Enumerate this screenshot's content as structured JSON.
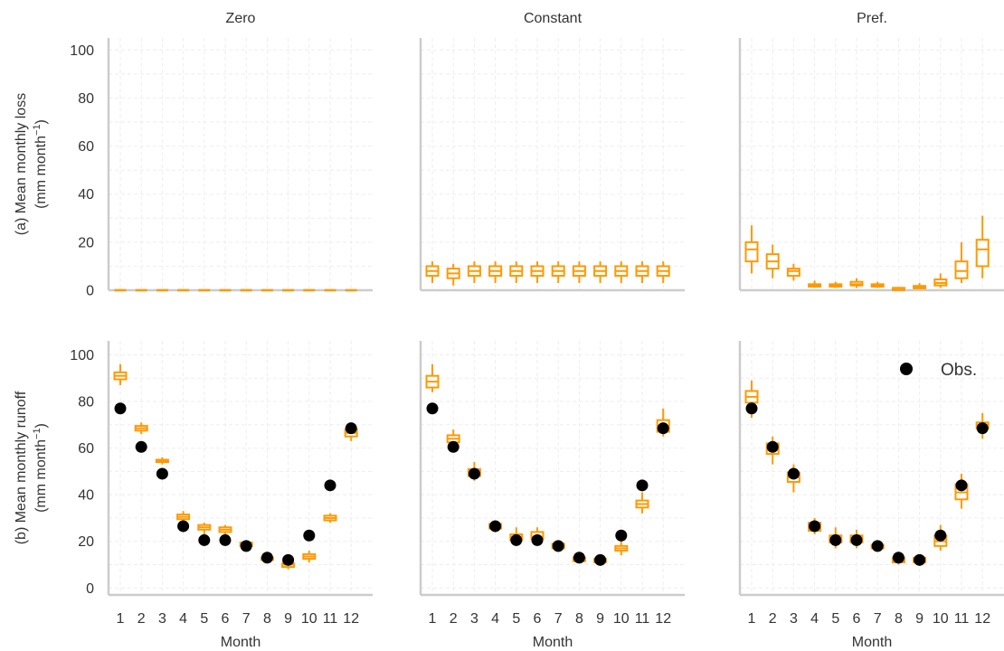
{
  "colors": {
    "box": "#ff9900",
    "obs": "#000000",
    "axis": "#cccccc",
    "grid": "#eeeeee",
    "text": "#333333"
  },
  "chart_data": {
    "type": "box",
    "grid": true,
    "legend": {
      "label": "Obs.",
      "placement": "top-right of Pref. runoff panel"
    },
    "columns": [
      "Zero",
      "Constant",
      "Pref."
    ],
    "xlabel": "Month",
    "categories": [
      "1",
      "2",
      "3",
      "4",
      "5",
      "6",
      "7",
      "8",
      "9",
      "10",
      "11",
      "12"
    ],
    "rows": [
      {
        "ylabel_line1": "(a) Mean monthly loss",
        "ylabel_line2": "(mm month",
        "ylabel_sup": "−1",
        "ylabel_tail": ")",
        "ylim": [
          0,
          105
        ],
        "yticks": [
          0,
          20,
          40,
          60,
          80,
          100
        ],
        "panels": [
          {
            "column": "Zero",
            "boxes": [
              [
                0,
                0,
                0,
                0,
                0
              ],
              [
                0,
                0,
                0,
                0,
                0
              ],
              [
                0,
                0,
                0,
                0,
                0
              ],
              [
                0,
                0,
                0,
                0,
                0
              ],
              [
                0,
                0,
                0,
                0,
                0
              ],
              [
                0,
                0,
                0,
                0,
                0
              ],
              [
                0,
                0,
                0,
                0,
                0
              ],
              [
                0,
                0,
                0,
                0,
                0
              ],
              [
                0,
                0,
                0,
                0,
                0
              ],
              [
                0,
                0,
                0,
                0,
                0
              ],
              [
                0,
                0,
                0,
                0,
                0
              ],
              [
                0,
                0,
                0,
                0,
                0
              ]
            ]
          },
          {
            "column": "Constant",
            "boxes": [
              [
                3,
                6,
                8,
                10,
                12
              ],
              [
                2,
                5,
                7,
                9,
                11
              ],
              [
                3,
                6,
                8,
                10,
                12
              ],
              [
                3,
                6,
                8,
                10,
                12
              ],
              [
                3,
                6,
                8,
                10,
                12
              ],
              [
                3,
                6,
                8,
                10,
                12
              ],
              [
                3,
                6,
                8,
                10,
                12
              ],
              [
                3,
                6,
                8,
                10,
                12
              ],
              [
                3,
                6,
                8,
                10,
                12
              ],
              [
                3,
                6,
                8,
                10,
                12
              ],
              [
                3,
                6,
                8,
                10,
                12
              ],
              [
                3,
                6,
                8,
                10,
                12
              ]
            ]
          },
          {
            "column": "Pref.",
            "boxes": [
              [
                7,
                12,
                17,
                20,
                27
              ],
              [
                5,
                9,
                12,
                15,
                19
              ],
              [
                4,
                6,
                8,
                9,
                11
              ],
              [
                1,
                1.5,
                2,
                2.5,
                4
              ],
              [
                1,
                1.5,
                2,
                2.5,
                3.5
              ],
              [
                1,
                2,
                2.5,
                3.5,
                5
              ],
              [
                1,
                1.5,
                2,
                2.5,
                3.5
              ],
              [
                0.5,
                0.5,
                0.8,
                1,
                1.2
              ],
              [
                0.5,
                0.8,
                1.2,
                1.8,
                3
              ],
              [
                1,
                2,
                3,
                4.5,
                7
              ],
              [
                3,
                5,
                8,
                12,
                20
              ],
              [
                5,
                10,
                17,
                21,
                31
              ]
            ]
          }
        ]
      },
      {
        "ylabel_line1": "(b) Mean monthly runoff",
        "ylabel_line2": "(mm month",
        "ylabel_sup": "−1",
        "ylabel_tail": ")",
        "ylim": [
          -3,
          106
        ],
        "yticks": [
          0,
          20,
          40,
          60,
          80,
          100
        ],
        "obs": [
          77,
          60.5,
          49,
          26.5,
          20.5,
          20.5,
          18,
          13,
          12,
          22.5,
          44,
          68.5
        ],
        "panels": [
          {
            "column": "Zero",
            "boxes": [
              [
                87,
                89.5,
                91,
                92.5,
                96
              ],
              [
                66,
                67.5,
                68.5,
                69.5,
                71
              ],
              [
                53,
                54,
                54.5,
                55,
                56
              ],
              [
                28,
                29.5,
                30.5,
                31.5,
                33
              ],
              [
                23,
                25,
                26,
                27,
                28
              ],
              [
                23,
                24,
                25,
                26,
                27
              ],
              [
                17,
                18,
                19,
                19.5,
                20.5
              ],
              [
                11,
                12,
                12.5,
                13,
                14
              ],
              [
                8,
                9,
                10,
                10.5,
                12
              ],
              [
                11,
                12.5,
                13.5,
                14.5,
                16
              ],
              [
                28,
                29,
                30,
                31,
                32
              ],
              [
                63,
                65,
                66.5,
                68,
                71
              ]
            ]
          },
          {
            "column": "Constant",
            "boxes": [
              [
                84,
                86,
                88.5,
                91,
                96
              ],
              [
                61,
                62.5,
                64,
                65.5,
                68
              ],
              [
                46,
                48,
                50,
                51,
                54
              ],
              [
                24,
                25.5,
                26.5,
                27.5,
                29
              ],
              [
                19,
                20.5,
                22,
                23,
                26
              ],
              [
                19,
                21,
                22,
                24,
                26
              ],
              [
                16,
                17,
                18,
                19,
                20
              ],
              [
                11,
                11.5,
                12,
                13,
                14
              ],
              [
                10,
                11,
                11.5,
                12.5,
                14
              ],
              [
                14,
                16,
                17,
                18,
                21
              ],
              [
                32,
                34.5,
                36,
                37.5,
                41
              ],
              [
                65,
                67,
                69.5,
                72,
                77
              ]
            ]
          },
          {
            "column": "Pref.",
            "boxes": [
              [
                73,
                79.5,
                82,
                84.5,
                89
              ],
              [
                53,
                57.5,
                60,
                62,
                65
              ],
              [
                41,
                45.5,
                47.5,
                49.5,
                53
              ],
              [
                23,
                24.5,
                26,
                28,
                30
              ],
              [
                17,
                19.5,
                21,
                22.5,
                26
              ],
              [
                17,
                19.5,
                21,
                22.5,
                25
              ],
              [
                16,
                17,
                18,
                18.5,
                20
              ],
              [
                10,
                11,
                12,
                13,
                15
              ],
              [
                10,
                11,
                12,
                13,
                14
              ],
              [
                16,
                18,
                20,
                22.5,
                27
              ],
              [
                34,
                38,
                41,
                44.5,
                49
              ],
              [
                64,
                68.5,
                70,
                71,
                75
              ]
            ]
          }
        ]
      }
    ]
  }
}
